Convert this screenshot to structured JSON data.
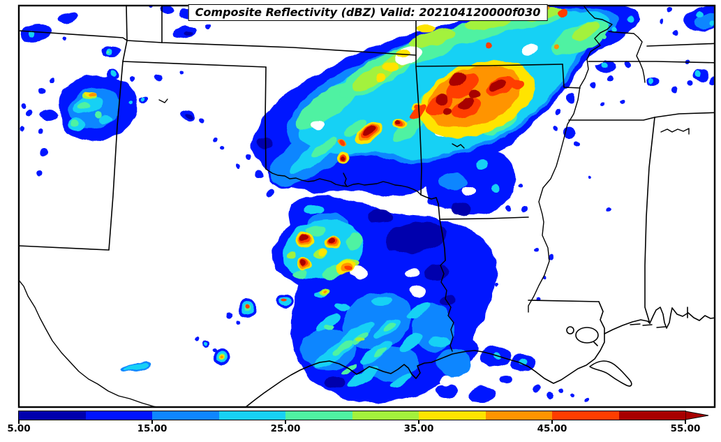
{
  "title": "Composite Reflectivity (dBZ) Valid: 202104120000f030",
  "colorbar": {
    "ticks": [
      {
        "value": 5,
        "label": "5.00"
      },
      {
        "value": 15,
        "label": "15.00"
      },
      {
        "value": 25,
        "label": "25.00"
      },
      {
        "value": 35,
        "label": "35.00"
      },
      {
        "value": 45,
        "label": "45.00"
      },
      {
        "value": 55,
        "label": "55.00"
      }
    ],
    "levels": [
      {
        "min": 5,
        "max": 10,
        "color": "#0000AD"
      },
      {
        "min": 10,
        "max": 15,
        "color": "#0013FF"
      },
      {
        "min": 15,
        "max": 20,
        "color": "#0E86FF"
      },
      {
        "min": 20,
        "max": 25,
        "color": "#17D1F5"
      },
      {
        "min": 25,
        "max": 30,
        "color": "#4FF2A2"
      },
      {
        "min": 30,
        "max": 35,
        "color": "#A3F23C"
      },
      {
        "min": 35,
        "max": 40,
        "color": "#FFE400"
      },
      {
        "min": 40,
        "max": 45,
        "color": "#FF9400"
      },
      {
        "min": 45,
        "max": 50,
        "color": "#FF3D00"
      },
      {
        "min": 50,
        "max": 55,
        "color": "#A80000"
      }
    ],
    "over_arrow_color": "#A80000"
  }
}
